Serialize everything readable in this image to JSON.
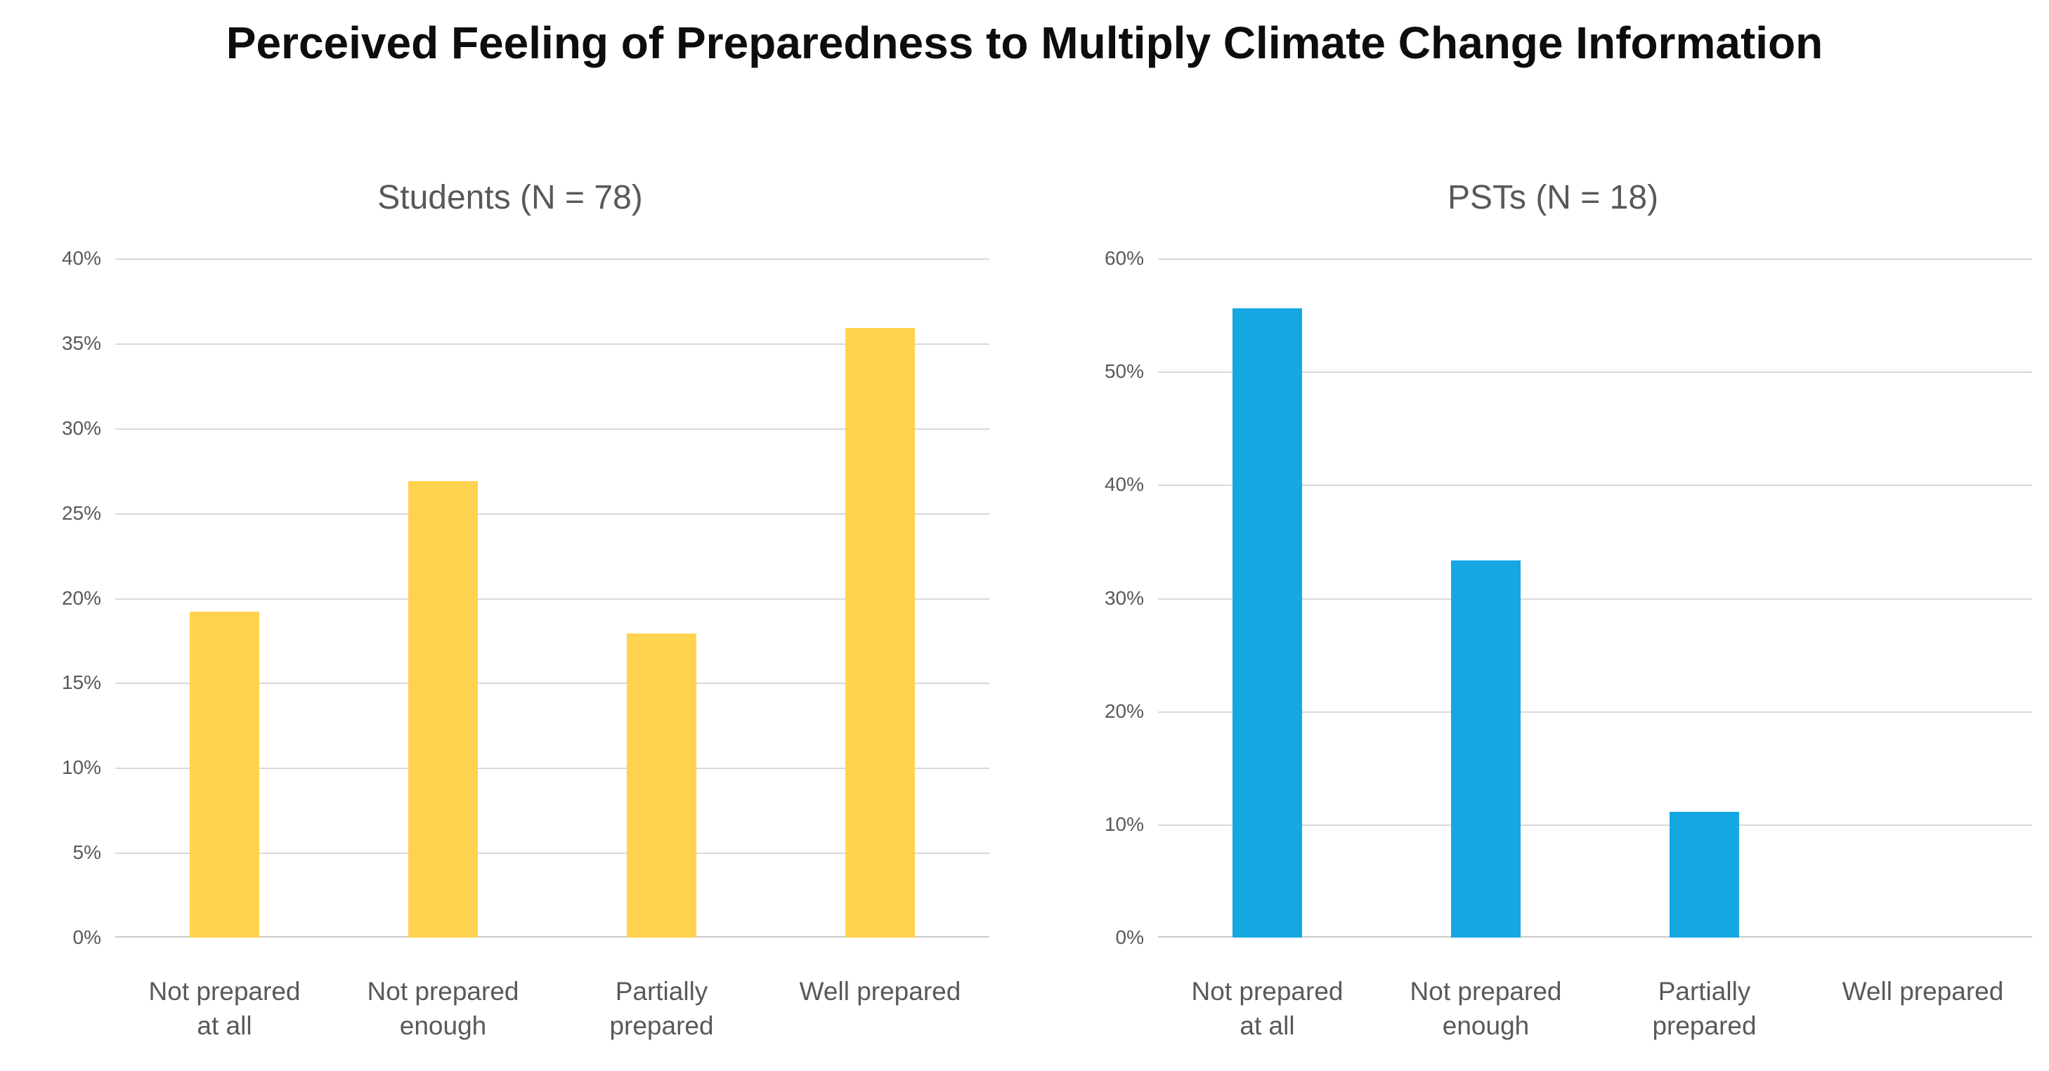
{
  "figure": {
    "title": "Perceived Feeling of Preparedness to Multiply Climate Change Information"
  },
  "colors": {
    "students_bar": "#FFD24F",
    "psts_bar": "#14A7E2",
    "gridline": "#d9d9d9",
    "axis_text": "#595959",
    "title_text": "#0d0d0d"
  },
  "chart_data": [
    {
      "type": "bar",
      "title": "Students (N = 78)",
      "categories": [
        "Not prepared\nat all",
        "Not prepared\nenough",
        "Partially\nprepared",
        "Well prepared"
      ],
      "values": [
        19.2,
        26.9,
        17.9,
        35.9
      ],
      "bar_color": "#FFD24F",
      "xlabel": "",
      "ylabel": "",
      "ylim": [
        0,
        40
      ],
      "yticks": [
        0,
        5,
        10,
        15,
        20,
        25,
        30,
        35,
        40
      ],
      "ytick_suffix": "%",
      "grid": true,
      "legend": "none"
    },
    {
      "type": "bar",
      "title": "PSTs (N = 18)",
      "categories": [
        "Not prepared\nat all",
        "Not prepared\nenough",
        "Partially\nprepared",
        "Well prepared"
      ],
      "values": [
        55.6,
        33.3,
        11.1,
        0
      ],
      "bar_color": "#14A7E2",
      "xlabel": "",
      "ylabel": "",
      "ylim": [
        0,
        60
      ],
      "yticks": [
        0,
        10,
        20,
        30,
        40,
        50,
        60
      ],
      "ytick_suffix": "%",
      "grid": true,
      "legend": "none"
    }
  ]
}
